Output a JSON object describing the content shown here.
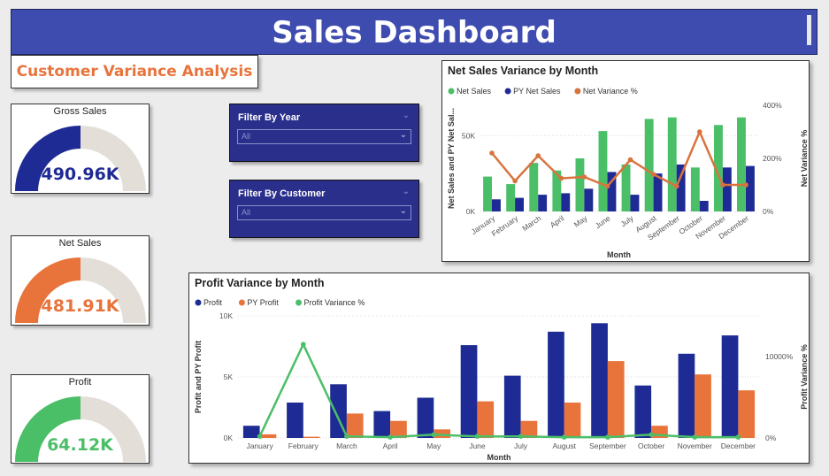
{
  "header": {
    "title": "Sales Dashboard"
  },
  "subtitle": "Customer Variance Analysis",
  "kpis": [
    {
      "title": "Gross Sales",
      "value": "490.96K",
      "color": "#1f2b94",
      "fraction": 0.5
    },
    {
      "title": "Net Sales",
      "value": "481.91K",
      "color": "#e8743c",
      "fraction": 0.5
    },
    {
      "title": "Profit",
      "value": "64.12K",
      "color": "#4bbf68",
      "fraction": 0.5
    }
  ],
  "filters": [
    {
      "title": "Filter By Year",
      "value": "All"
    },
    {
      "title": "Filter By Customer",
      "value": "All"
    }
  ],
  "chart_data": [
    {
      "type": "bar",
      "title": "Net Sales Variance by Month",
      "xlabel": "Month",
      "ylabel": "Net Sales and PY Net Sal...",
      "y2label": "Net Variance %",
      "categories": [
        "January",
        "February",
        "March",
        "April",
        "May",
        "June",
        "July",
        "August",
        "September",
        "October",
        "November",
        "December"
      ],
      "yticks": [
        "0K",
        "50K"
      ],
      "y2ticks": [
        "0%",
        "200%",
        "400%"
      ],
      "ylim": [
        0,
        70000
      ],
      "y2lim": [
        0,
        400
      ],
      "legend_position": "top-left",
      "grid": true,
      "series": [
        {
          "name": "Net Sales",
          "kind": "bar",
          "color": "#4bbf68",
          "values": [
            23000,
            18000,
            32000,
            27000,
            35000,
            53000,
            31000,
            61000,
            62000,
            29000,
            57000,
            62000
          ]
        },
        {
          "name": "PY Net Sales",
          "kind": "bar",
          "color": "#1f2b94",
          "values": [
            8000,
            9000,
            11000,
            12000,
            15000,
            26000,
            11000,
            25000,
            31000,
            7000,
            29000,
            30000
          ]
        },
        {
          "name": "Net Variance %",
          "kind": "line",
          "axis": "y2",
          "color": "#d9733e",
          "values": [
            220,
            115,
            210,
            125,
            130,
            95,
            195,
            140,
            95,
            300,
            100,
            100
          ]
        }
      ]
    },
    {
      "type": "bar",
      "title": "Profit Variance by Month",
      "xlabel": "Month",
      "ylabel": "Profit and PY Profit",
      "y2label": "Profit Variance %",
      "categories": [
        "January",
        "February",
        "March",
        "April",
        "May",
        "June",
        "July",
        "August",
        "September",
        "October",
        "November",
        "December"
      ],
      "yticks": [
        "0K",
        "5K",
        "10K"
      ],
      "y2ticks": [
        "0%",
        "10000%"
      ],
      "ylim": [
        0,
        10000
      ],
      "y2lim": [
        0,
        15000
      ],
      "legend_position": "top-left",
      "grid": true,
      "series": [
        {
          "name": "Profit",
          "kind": "bar",
          "color": "#1f2b94",
          "values": [
            1000,
            2900,
            4400,
            2200,
            3300,
            7600,
            5100,
            8700,
            9400,
            4300,
            6900,
            8400
          ]
        },
        {
          "name": "PY Profit",
          "kind": "bar",
          "color": "#e8743c",
          "values": [
            300,
            100,
            2000,
            1400,
            700,
            3000,
            1400,
            2900,
            6300,
            1000,
            5200,
            3900
          ]
        },
        {
          "name": "Profit Variance %",
          "kind": "line",
          "axis": "y2",
          "color": "#4bbf68",
          "values": [
            200,
            11500,
            200,
            100,
            400,
            200,
            200,
            100,
            100,
            400,
            100,
            100
          ]
        }
      ]
    }
  ]
}
